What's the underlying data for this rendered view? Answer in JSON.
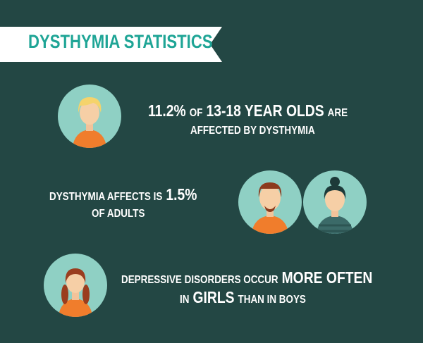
{
  "header": {
    "title": "DYSTHYMIA STATISTICS"
  },
  "stats": [
    {
      "lines": [
        [
          {
            "text": "11.2%",
            "big": true
          },
          {
            "text": "OF",
            "big": false
          },
          {
            "text": "13-18 YEAR OLDS",
            "big": true
          },
          {
            "text": "ARE",
            "big": false
          }
        ],
        [
          {
            "text": "AFFECTED BY DYSTHYMIA",
            "big": false
          }
        ]
      ]
    },
    {
      "lines": [
        [
          {
            "text": "DYSTHYMIA AFFECTS IS",
            "big": false
          },
          {
            "text": "1.5%",
            "big": true
          }
        ],
        [
          {
            "text": "OF ADULTS",
            "big": false
          }
        ]
      ]
    },
    {
      "lines": [
        [
          {
            "text": "DEPRESSIVE DISORDERS OCCUR",
            "big": false
          },
          {
            "text": "MORE OFTEN",
            "big": true
          }
        ],
        [
          {
            "text": "IN",
            "big": false
          },
          {
            "text": "GIRLS",
            "big": true
          },
          {
            "text": "THAN IN BOYS",
            "big": false
          }
        ]
      ]
    }
  ]
}
